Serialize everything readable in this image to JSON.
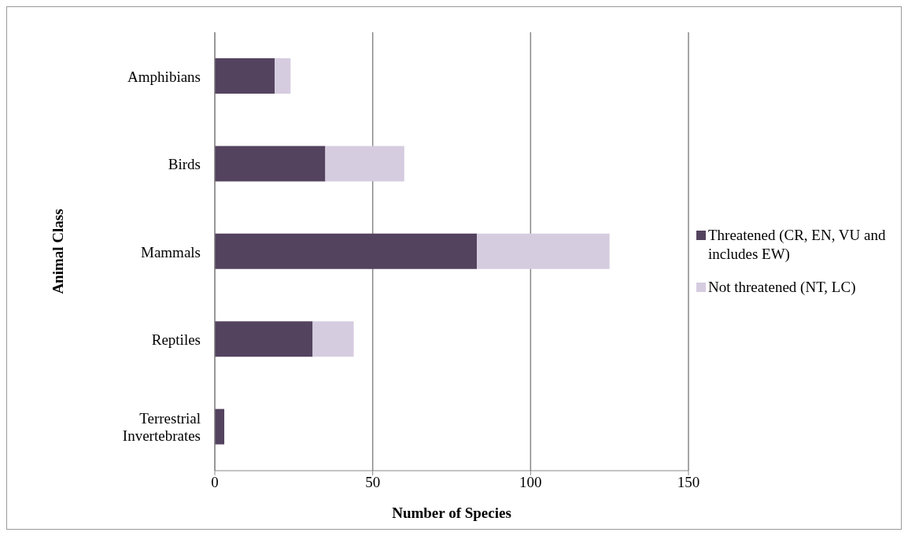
{
  "chart_data": {
    "type": "bar",
    "orientation": "horizontal",
    "stacked": true,
    "xlabel": "Number of Species",
    "ylabel": "Animal Class",
    "categories": [
      "Amphibians",
      "Birds",
      "Mammals",
      "Reptiles",
      "Terrestrial Invertebrates"
    ],
    "series": [
      {
        "name": "Threatened (CR, EN, VU and includes EW)",
        "color": "#54435f",
        "values": [
          19,
          35,
          83,
          31,
          3
        ]
      },
      {
        "name": "Not threatened (NT, LC)",
        "color": "#d6cce0",
        "values": [
          5,
          25,
          42,
          13,
          0
        ]
      }
    ],
    "xlim": [
      0,
      150
    ],
    "xticks": [
      0,
      50,
      100,
      150
    ],
    "grid": "x",
    "legend": "right"
  }
}
